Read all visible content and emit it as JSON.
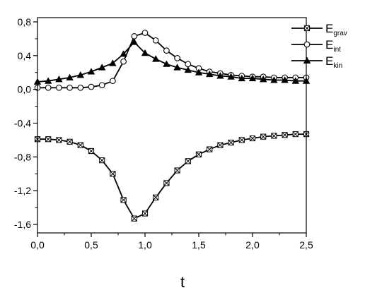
{
  "chart_data": {
    "type": "line",
    "title": "",
    "xlabel": "t",
    "ylabel": "",
    "xlim": [
      0.0,
      2.5
    ],
    "ylim": [
      -1.7,
      0.85
    ],
    "x_ticks": [
      "0,0",
      "0,5",
      "1,0",
      "1,5",
      "2,0",
      "2,5"
    ],
    "x_tick_values": [
      0.0,
      0.5,
      1.0,
      1.5,
      2.0,
      2.5
    ],
    "y_ticks": [
      "0,8",
      "0,4",
      "0,0",
      "-0,4",
      "-0,8",
      "-1,2",
      "-1,6"
    ],
    "y_tick_values": [
      0.8,
      0.4,
      0.0,
      -0.4,
      -0.8,
      -1.2,
      -1.6
    ],
    "grid": false,
    "legend_position": "top-right",
    "series": [
      {
        "name": "E",
        "name_sub": "grav",
        "marker": "boxed-x",
        "color": "#000000",
        "x": [
          0.0,
          0.1,
          0.2,
          0.3,
          0.4,
          0.5,
          0.6,
          0.7,
          0.8,
          0.9,
          1.0,
          1.1,
          1.2,
          1.3,
          1.4,
          1.5,
          1.6,
          1.7,
          1.8,
          1.9,
          2.0,
          2.1,
          2.2,
          2.3,
          2.4,
          2.5
        ],
        "y": [
          -0.59,
          -0.59,
          -0.6,
          -0.62,
          -0.66,
          -0.73,
          -0.84,
          -1.0,
          -1.31,
          -1.53,
          -1.47,
          -1.28,
          -1.11,
          -0.96,
          -0.85,
          -0.77,
          -0.71,
          -0.66,
          -0.63,
          -0.6,
          -0.58,
          -0.56,
          -0.55,
          -0.54,
          -0.53,
          -0.53
        ]
      },
      {
        "name": "E",
        "name_sub": "int",
        "marker": "open-circle",
        "color": "#000000",
        "x": [
          0.0,
          0.1,
          0.2,
          0.3,
          0.4,
          0.5,
          0.6,
          0.7,
          0.8,
          0.9,
          1.0,
          1.1,
          1.2,
          1.3,
          1.4,
          1.5,
          1.6,
          1.7,
          1.8,
          1.9,
          2.0,
          2.1,
          2.2,
          2.3,
          2.4,
          2.5
        ],
        "y": [
          0.02,
          0.02,
          0.02,
          0.02,
          0.02,
          0.03,
          0.05,
          0.1,
          0.33,
          0.63,
          0.67,
          0.58,
          0.46,
          0.37,
          0.3,
          0.25,
          0.21,
          0.19,
          0.17,
          0.16,
          0.15,
          0.15,
          0.14,
          0.14,
          0.14,
          0.14
        ]
      },
      {
        "name": "E",
        "name_sub": "kin",
        "marker": "filled-triangle",
        "color": "#000000",
        "x": [
          0.0,
          0.1,
          0.2,
          0.3,
          0.4,
          0.5,
          0.6,
          0.7,
          0.8,
          0.9,
          1.0,
          1.1,
          1.2,
          1.3,
          1.4,
          1.5,
          1.6,
          1.7,
          1.8,
          1.9,
          2.0,
          2.1,
          2.2,
          2.3,
          2.4,
          2.5
        ],
        "y": [
          0.09,
          0.1,
          0.12,
          0.14,
          0.17,
          0.21,
          0.26,
          0.31,
          0.42,
          0.56,
          0.43,
          0.36,
          0.3,
          0.26,
          0.23,
          0.2,
          0.18,
          0.16,
          0.15,
          0.13,
          0.13,
          0.12,
          0.11,
          0.11,
          0.1,
          0.1
        ]
      }
    ]
  }
}
